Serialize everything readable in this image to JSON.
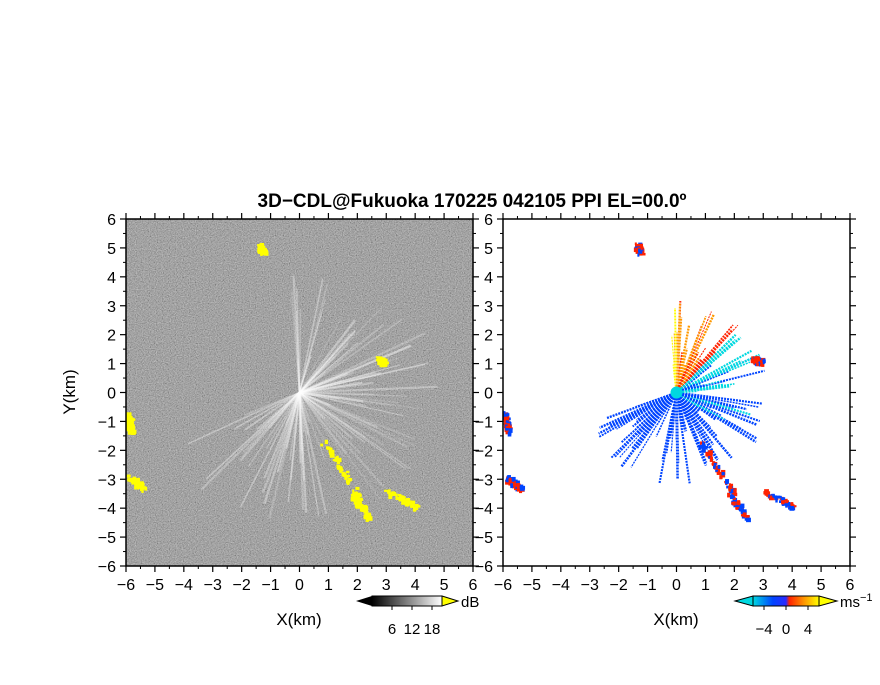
{
  "chart_data": [
    {
      "type": "heatmap",
      "title": "3D−CDL@Fukuoka 170225 042105 PPI EL=00.0º",
      "xlabel": "X(km)",
      "ylabel": "Y(km)",
      "xlim": [
        -6,
        6
      ],
      "ylim": [
        -6,
        6
      ],
      "x_ticks": [
        -6,
        -5,
        -4,
        -3,
        -2,
        -1,
        0,
        1,
        2,
        3,
        4,
        5,
        6
      ],
      "y_ticks": [
        -6,
        -5,
        -4,
        -3,
        -2,
        -1,
        0,
        1,
        2,
        3,
        4,
        5,
        6
      ],
      "background": "dark grayscale noise",
      "echo_color": "#ffff00",
      "echo_regions": [
        {
          "x": -6.0,
          "y": -1.3
        },
        {
          "x": -5.9,
          "y": -3.3
        },
        {
          "x": -1.4,
          "y": 4.9
        },
        {
          "x": 2.6,
          "y": 1.1
        },
        {
          "x": 0.8,
          "y": -2.1
        },
        {
          "x": 1.8,
          "y": -3.7
        },
        {
          "x": 3.0,
          "y": -3.6
        }
      ],
      "colorbar": {
        "label": "dB",
        "tick_labels": [
          "6",
          "12",
          "18"
        ],
        "ticks": [
          6,
          12,
          18
        ],
        "range": [
          0,
          21
        ],
        "colors": [
          "#000000",
          "#ffffff"
        ]
      }
    },
    {
      "type": "heatmap",
      "xlabel": "X(km)",
      "xlim": [
        -6,
        6
      ],
      "ylim": [
        -6,
        6
      ],
      "x_ticks": [
        -6,
        -5,
        -4,
        -3,
        -2,
        -1,
        0,
        1,
        2,
        3,
        4,
        5,
        6
      ],
      "y_ticks": [
        -6,
        -5,
        -4,
        -3,
        -2,
        -1,
        0,
        1,
        2,
        3,
        4,
        5,
        6
      ],
      "colorbar": {
        "label": "ms",
        "label_exponent": "−1",
        "tick_labels": [
          "−4",
          "0",
          "4"
        ],
        "ticks": [
          -4,
          0,
          4
        ],
        "range": [
          -6,
          6
        ],
        "colors": [
          "#00d8e0",
          "#0044ff",
          "#ff2200",
          "#ff9900",
          "#ffff00"
        ]
      }
    }
  ]
}
